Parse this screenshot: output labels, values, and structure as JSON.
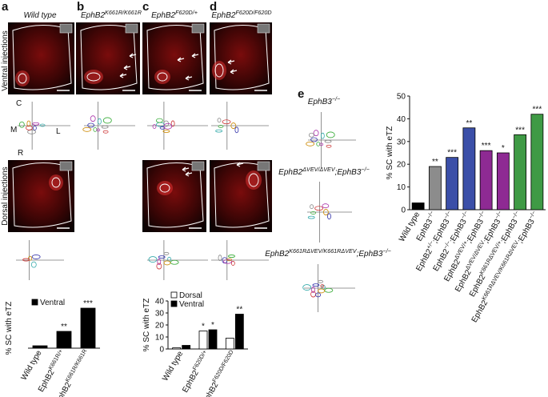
{
  "panel_letters": [
    "a",
    "b",
    "c",
    "d",
    "e"
  ],
  "genotypes": {
    "a": [
      {
        "text": "Wild type"
      }
    ],
    "b": [
      {
        "text": "EphB2"
      },
      {
        "sup": "K661R/K661R"
      }
    ],
    "c": [
      {
        "text": "EphB2"
      },
      {
        "sup": "F620D/+"
      }
    ],
    "d": [
      {
        "text": "EphB2"
      },
      {
        "sup": "F620D/F620D"
      }
    ],
    "e1": [
      {
        "text": "EphB3"
      },
      {
        "sup": "−/−"
      }
    ],
    "e2": [
      {
        "text": "EphB2"
      },
      {
        "sup": "ΔVEV/ΔVEV"
      },
      {
        "text": ";EphB3"
      },
      {
        "sup": "−/−"
      }
    ],
    "e3": [
      {
        "text": "EphB2"
      },
      {
        "sup": "K661RΔVEV/K661RΔVEV"
      },
      {
        "text": ";EphB3"
      },
      {
        "sup": "−/−"
      }
    ]
  },
  "side_labels": {
    "ventral": "Ventral injections",
    "dorsal": "Dorsal injections"
  },
  "orientation": {
    "c": "C",
    "m": "M",
    "l": "L",
    "r": "R"
  },
  "chart_data": [
    {
      "type": "bar",
      "ylabel": "% SC with eTZ",
      "categories": [
        [
          {
            "text": "Wild type"
          }
        ],
        [
          {
            "text": "EphB2"
          },
          {
            "sup": "K661R/+"
          }
        ],
        [
          {
            "text": "EphB2"
          },
          {
            "sup": "K661R/K661R"
          }
        ]
      ],
      "series": [
        {
          "name": "Ventral",
          "color": "#000000",
          "values": [
            3,
            21,
            50
          ],
          "annotations": [
            null,
            "**",
            "***"
          ]
        }
      ],
      "ylim": [
        0,
        50
      ]
    },
    {
      "type": "grouped_bar",
      "ylabel": "% SC with eTZ",
      "categories": [
        [
          {
            "text": "Wild type"
          }
        ],
        [
          {
            "text": "EphB2"
          },
          {
            "sup": "F620D/+"
          }
        ],
        [
          {
            "text": "EphB2"
          },
          {
            "sup": "F620D/F620D"
          }
        ]
      ],
      "series": [
        {
          "name": "Dorsal",
          "color": "#ffffff",
          "values": [
            1,
            15,
            9
          ],
          "annotations": [
            null,
            "*",
            null
          ]
        },
        {
          "name": "Ventral",
          "color": "#000000",
          "values": [
            3,
            16,
            29
          ],
          "annotations": [
            null,
            "*",
            "**"
          ]
        }
      ],
      "ylim": [
        0,
        40
      ],
      "yticks": [
        0,
        10,
        20,
        30,
        40
      ]
    },
    {
      "type": "bar",
      "ylabel": "% SC with eTZ",
      "categories": [
        [
          {
            "text": "Wild type"
          }
        ],
        [
          {
            "text": "EphB3"
          },
          {
            "sup": "−/−"
          }
        ],
        [
          {
            "text": "EphB2"
          },
          {
            "sup": "+/−"
          },
          {
            "text": ";EphB3"
          },
          {
            "sup": "−/−"
          }
        ],
        [
          {
            "text": "EphB2"
          },
          {
            "sup": "−/−"
          },
          {
            "text": ";EphB3"
          },
          {
            "sup": "−/−"
          }
        ],
        [
          {
            "text": "EphB2"
          },
          {
            "sup": "ΔVEV/+"
          },
          {
            "text": ";EphB3"
          },
          {
            "sup": "−/−"
          }
        ],
        [
          {
            "text": "EphB2"
          },
          {
            "sup": "ΔVEV/ΔVEV"
          },
          {
            "text": ";EphB3"
          },
          {
            "sup": "−/−"
          }
        ],
        [
          {
            "text": "EphB2"
          },
          {
            "sup": "K661RΔVEV/+"
          },
          {
            "text": ";EphB3"
          },
          {
            "sup": "−/−"
          }
        ],
        [
          {
            "text": "EphB2"
          },
          {
            "sup": "K661RΔVEV/K661RΔVEV"
          },
          {
            "text": ";EphB3"
          },
          {
            "sup": "−/−"
          }
        ]
      ],
      "values": [
        3,
        19,
        23,
        36,
        26,
        25,
        33,
        42
      ],
      "colors": [
        "#000000",
        "#8c8c8c",
        "#3b4fa8",
        "#3b4fa8",
        "#8e2a93",
        "#8e2a93",
        "#3f9a45",
        "#3f9a45"
      ],
      "annotations": [
        null,
        "**",
        "***",
        "**",
        "***",
        "*",
        "***",
        "***"
      ],
      "ylim": [
        0,
        50
      ],
      "yticks": [
        0,
        10,
        20,
        30,
        40,
        50
      ]
    }
  ]
}
